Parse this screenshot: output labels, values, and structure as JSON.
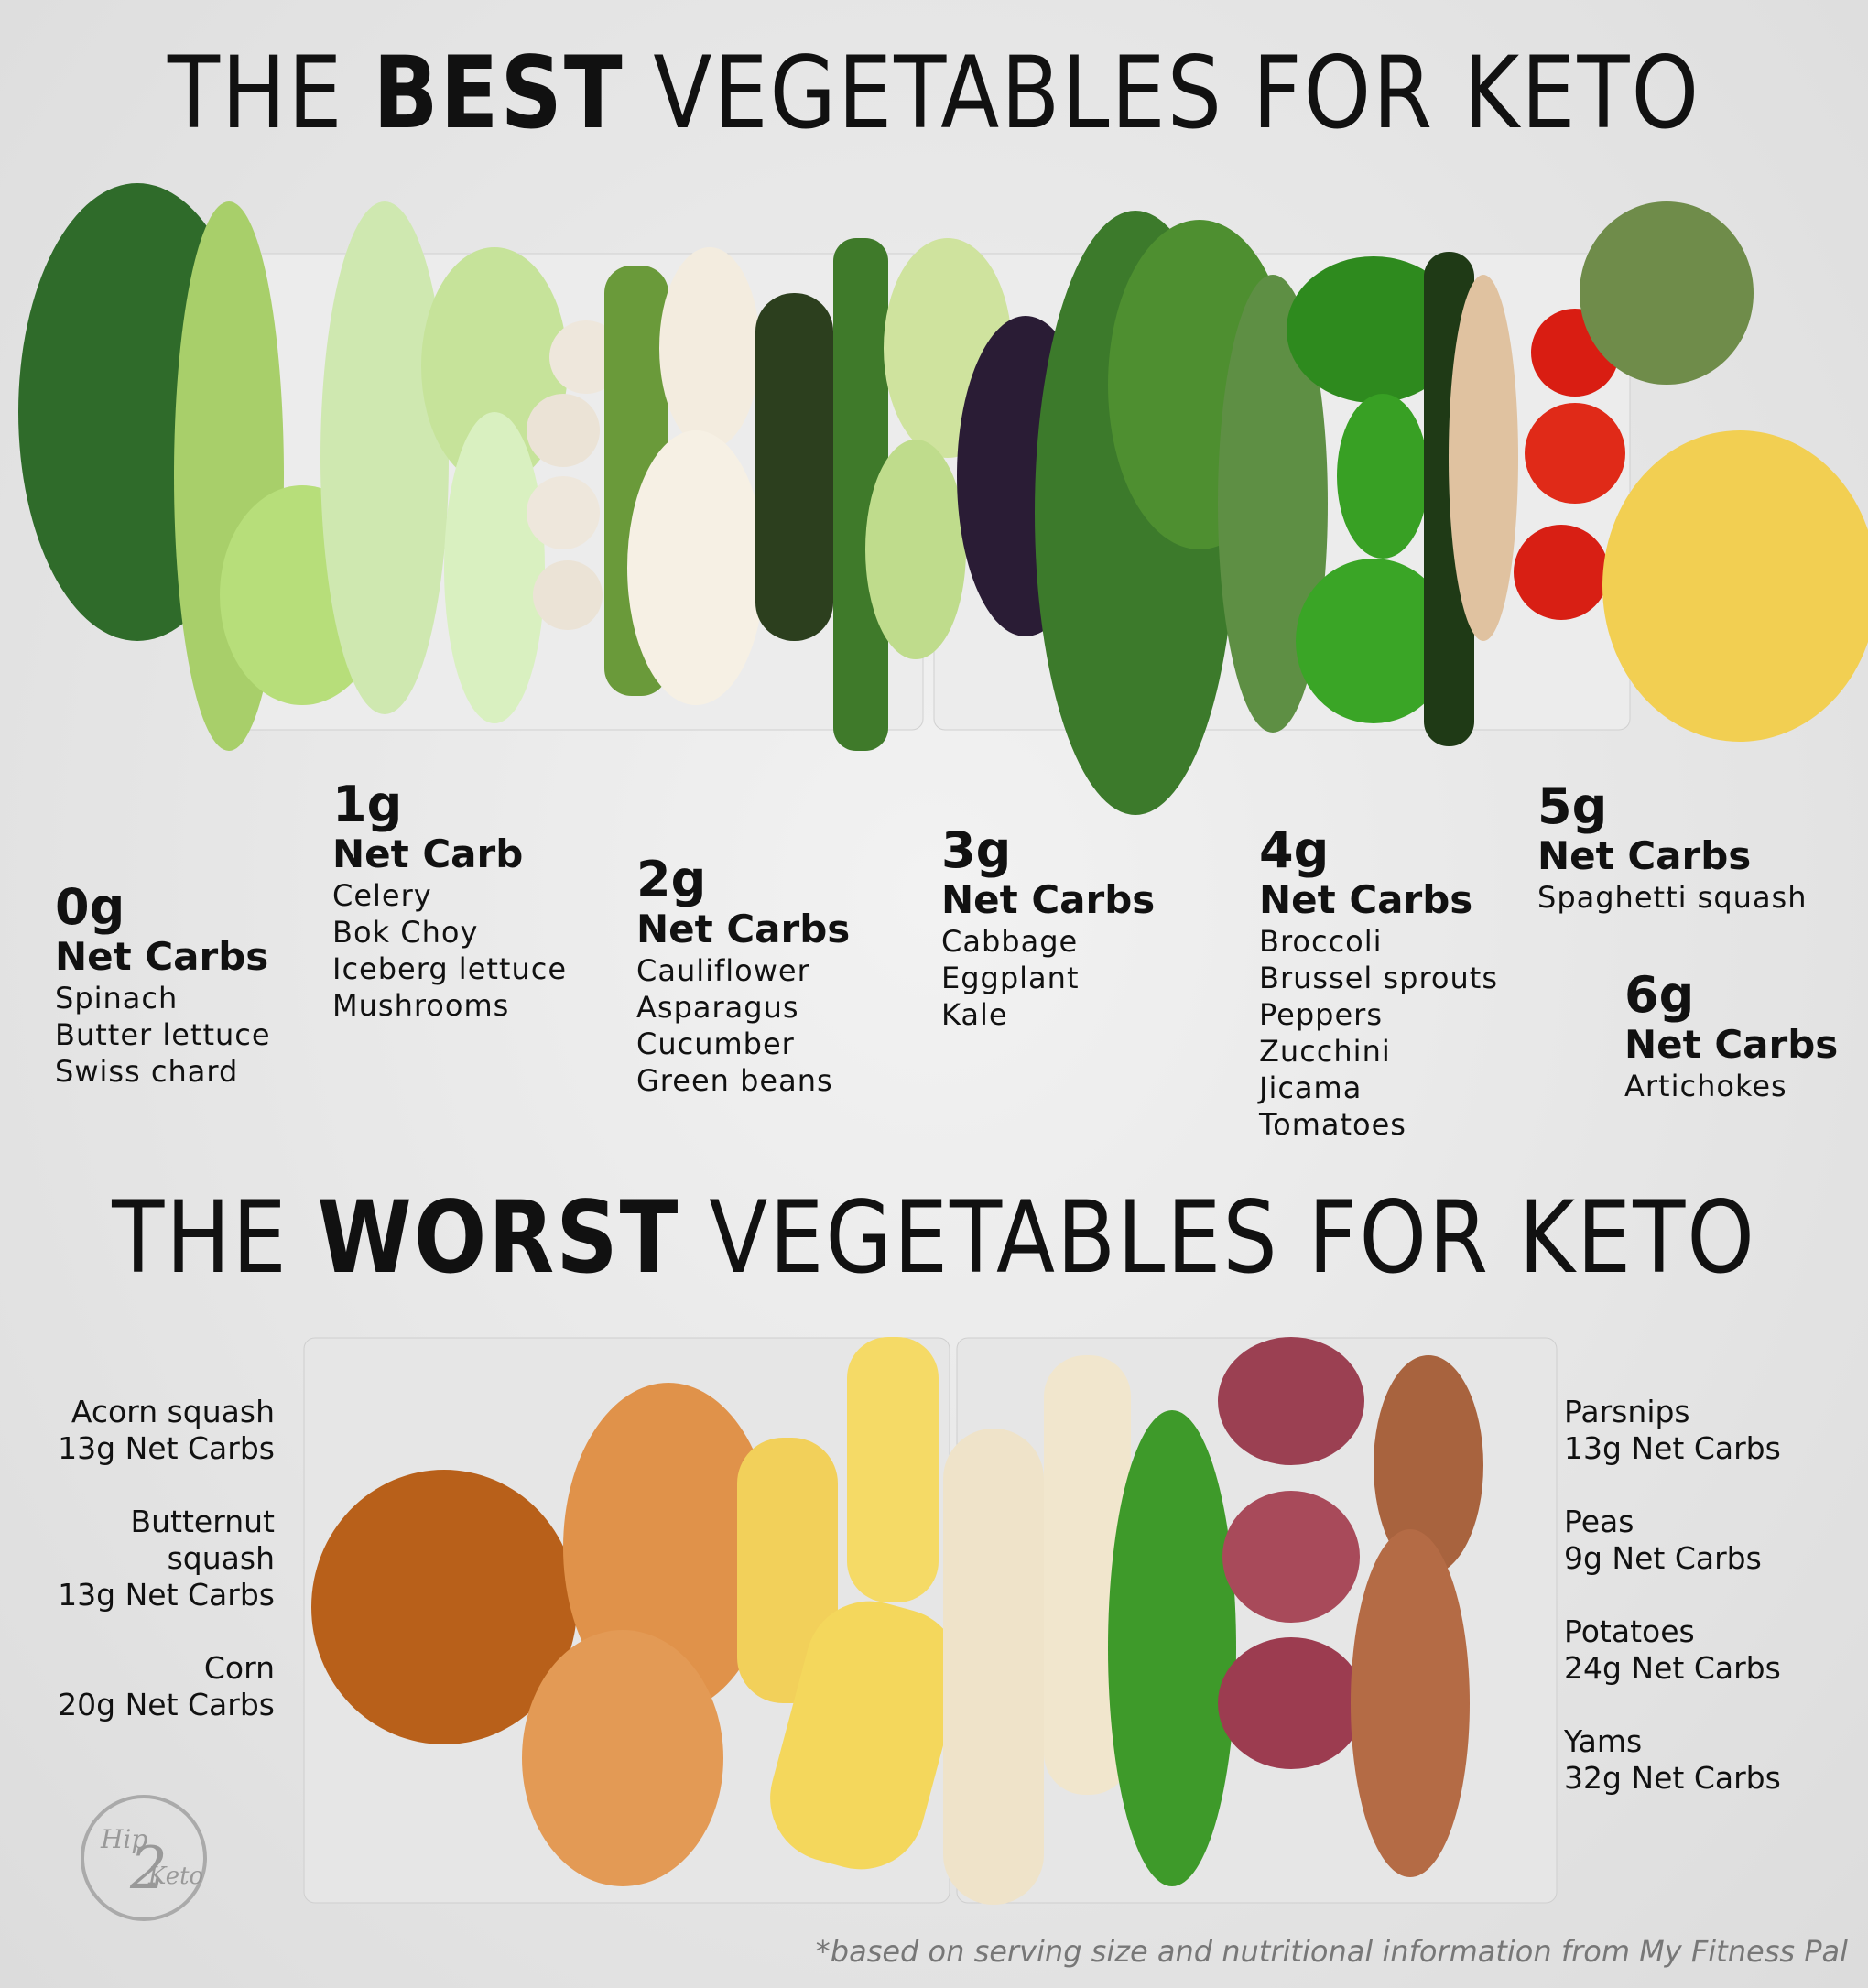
{
  "best_title": {
    "prefix": "THE",
    "emphasis": "BEST",
    "suffix": "VEGETABLES FOR KETO"
  },
  "best_groups": [
    {
      "amount": "0g",
      "label": "Net Carbs",
      "items": [
        "Spinach",
        "Butter lettuce",
        "Swiss chard"
      ]
    },
    {
      "amount": "1g",
      "label": "Net Carb",
      "items": [
        "Celery",
        "Bok Choy",
        "Iceberg lettuce",
        "Mushrooms"
      ]
    },
    {
      "amount": "2g",
      "label": "Net Carbs",
      "items": [
        "Cauliflower",
        "Asparagus",
        "Cucumber",
        "Green beans"
      ]
    },
    {
      "amount": "3g",
      "label": "Net Carbs",
      "items": [
        "Cabbage",
        "Eggplant",
        "Kale"
      ]
    },
    {
      "amount": "4g",
      "label": "Net Carbs",
      "items": [
        "Broccoli",
        "Brussel sprouts",
        "Peppers",
        "Zucchini",
        "Jicama",
        "Tomatoes"
      ]
    },
    {
      "amount": "5g",
      "label": "Net Carbs",
      "items": [
        "Spaghetti squash"
      ]
    },
    {
      "amount": "6g",
      "label": "Net Carbs",
      "items": [
        "Artichokes"
      ]
    }
  ],
  "worst_title": {
    "prefix": "THE",
    "emphasis": "WORST",
    "suffix": "VEGETABLES FOR KETO"
  },
  "worst_left": [
    {
      "name": "Acorn squash",
      "carbs": "13g Net Carbs"
    },
    {
      "name": "Butternut squash",
      "carbs": "13g Net Carbs"
    },
    {
      "name": "Corn",
      "carbs": "20g Net Carbs"
    }
  ],
  "worst_right": [
    {
      "name": "Parsnips",
      "carbs": "13g Net Carbs"
    },
    {
      "name": "Peas",
      "carbs": "9g Net Carbs"
    },
    {
      "name": "Potatoes",
      "carbs": "24g Net Carbs"
    },
    {
      "name": "Yams",
      "carbs": "32g Net Carbs"
    }
  ],
  "logo": [
    "Hip",
    "2",
    "Keto"
  ],
  "footnote": "*based on serving size and nutritional information from My Fitness Pal"
}
